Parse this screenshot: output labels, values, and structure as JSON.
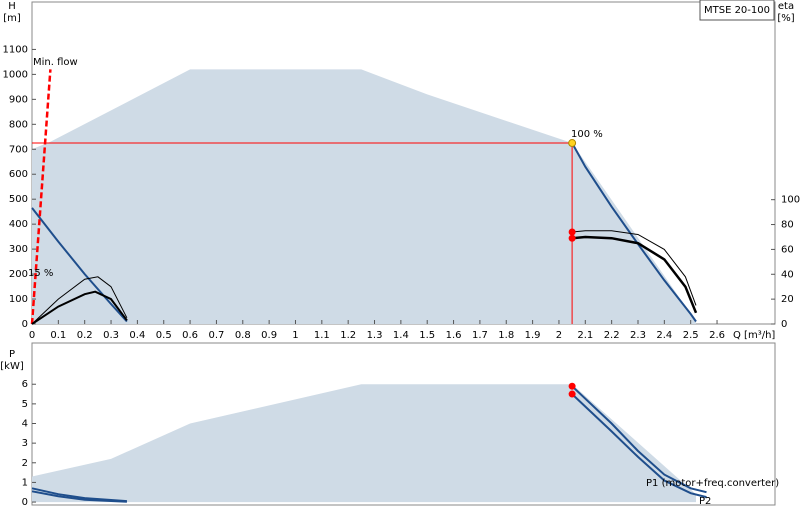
{
  "chart_data": [
    {
      "type": "line",
      "title": "MTSE 20-100",
      "ylabel": "H",
      "yunit": "[m]",
      "y2label": "eta",
      "y2unit": "[%]",
      "xlabel": "Q [m³/h]",
      "xlim": [
        0,
        2.82
      ],
      "ylim": [
        0,
        1290
      ],
      "y2lim": [
        0,
        259
      ],
      "xticks": [
        0,
        0.1,
        0.2,
        0.3,
        0.4,
        0.5,
        0.6,
        0.7,
        0.8,
        0.9,
        1,
        1.1,
        1.2,
        1.3,
        1.4,
        1.5,
        1.6,
        1.7,
        1.8,
        1.9,
        2,
        2.1,
        2.2,
        2.3,
        2.4,
        2.5,
        2.6
      ],
      "yticks": [
        0,
        100,
        200,
        300,
        400,
        500,
        600,
        700,
        800,
        900,
        1000,
        1100
      ],
      "y2ticks": [
        0,
        20,
        40,
        60,
        80,
        100
      ],
      "area": {
        "color": "#cfdbe6",
        "x": [
          0,
          0.07,
          0.6,
          1.25,
          1.5,
          2.05,
          2.52,
          2.52,
          0
        ],
        "values": [
          700,
          730,
          1020,
          1020,
          920,
          725,
          10,
          0,
          0
        ]
      },
      "series": [
        {
          "color": "#ff0000",
          "width": 1,
          "x": [
            0,
            2.05,
            2.05
          ],
          "values": [
            725,
            725,
            0
          ]
        },
        {
          "color": "#ff0000",
          "width": 2.5,
          "dash": true,
          "x": [
            0,
            0.07
          ],
          "values": [
            0,
            1020
          ]
        },
        {
          "color": "#1f4e8c",
          "width": 2,
          "x": [
            2.05,
            2.1,
            2.2,
            2.3,
            2.4,
            2.5,
            2.52
          ],
          "values": [
            725,
            630,
            470,
            320,
            175,
            40,
            10
          ]
        },
        {
          "color": "#1f4e8c",
          "width": 2,
          "x": [
            0,
            0.1,
            0.2,
            0.3,
            0.36
          ],
          "values": [
            465,
            330,
            200,
            80,
            10
          ]
        },
        {
          "color": "#000000",
          "width": 1,
          "axis": "y2",
          "x": [
            2.05,
            2.1,
            2.2,
            2.3,
            2.4,
            2.48,
            2.52
          ],
          "values": [
            74,
            75,
            75,
            72,
            60,
            38,
            15
          ]
        },
        {
          "color": "#000000",
          "width": 2.5,
          "axis": "y2",
          "x": [
            2.05,
            2.1,
            2.2,
            2.3,
            2.4,
            2.48,
            2.52
          ],
          "values": [
            69,
            70,
            69,
            65,
            52,
            30,
            9
          ]
        },
        {
          "color": "#000000",
          "width": 1,
          "axis": "y2",
          "x": [
            0,
            0.1,
            0.2,
            0.25,
            0.3,
            0.36
          ],
          "values": [
            0,
            20,
            36,
            38,
            30,
            5
          ]
        },
        {
          "color": "#000000",
          "width": 2,
          "axis": "y2",
          "x": [
            0,
            0.1,
            0.2,
            0.24,
            0.3,
            0.36
          ],
          "values": [
            0,
            14,
            24,
            26,
            20,
            3
          ]
        }
      ],
      "points": [
        {
          "color": "#ffd21f",
          "x": 2.05,
          "value": 725
        },
        {
          "color": "#ff0000",
          "axis": "y2",
          "x": 2.05,
          "value": 74
        },
        {
          "color": "#ff0000",
          "axis": "y2",
          "x": 2.05,
          "value": 69
        }
      ],
      "annotations": [
        {
          "text": "Min. flow",
          "color": "#ff0000"
        },
        {
          "text": "100 %",
          "color": "#000000"
        },
        {
          "text": "15 %",
          "color": "#000000"
        }
      ]
    },
    {
      "type": "line",
      "ylabel": "P",
      "yunit": "[kW]",
      "xlim": [
        0,
        2.82
      ],
      "ylim": [
        -0.15,
        8.1
      ],
      "yticks": [
        0,
        1,
        2,
        3,
        4,
        5,
        6
      ],
      "area": {
        "color": "#cfdbe6",
        "x": [
          0,
          0.3,
          0.6,
          1.25,
          2.05,
          2.52,
          2.52,
          0
        ],
        "values": [
          1.3,
          2.2,
          4.0,
          6.0,
          6.0,
          0.4,
          0,
          0
        ]
      },
      "series": [
        {
          "color": "#1f4e8c",
          "width": 2,
          "x": [
            2.05,
            2.2,
            2.3,
            2.4,
            2.5,
            2.56
          ],
          "values": [
            5.9,
            4.0,
            2.6,
            1.4,
            0.7,
            0.5
          ]
        },
        {
          "color": "#1f4e8c",
          "width": 2,
          "x": [
            2.05,
            2.2,
            2.3,
            2.4,
            2.5,
            2.56
          ],
          "values": [
            5.5,
            3.6,
            2.3,
            1.1,
            0.45,
            0.25
          ]
        },
        {
          "color": "#1f4e8c",
          "width": 2,
          "x": [
            0,
            0.1,
            0.2,
            0.36
          ],
          "values": [
            0.7,
            0.4,
            0.2,
            0.05
          ]
        },
        {
          "color": "#1f4e8c",
          "width": 2,
          "x": [
            0,
            0.1,
            0.2,
            0.36
          ],
          "values": [
            0.55,
            0.3,
            0.12,
            0.02
          ]
        }
      ],
      "points": [
        {
          "color": "#ff0000",
          "x": 2.05,
          "value": 5.9
        },
        {
          "color": "#ff0000",
          "x": 2.05,
          "value": 5.5
        }
      ],
      "annotations": [
        {
          "text": "P1 (motor+freq.converter)",
          "color": "#1f4e8c"
        },
        {
          "text": "P2",
          "color": "#1f4e8c"
        }
      ]
    }
  ]
}
